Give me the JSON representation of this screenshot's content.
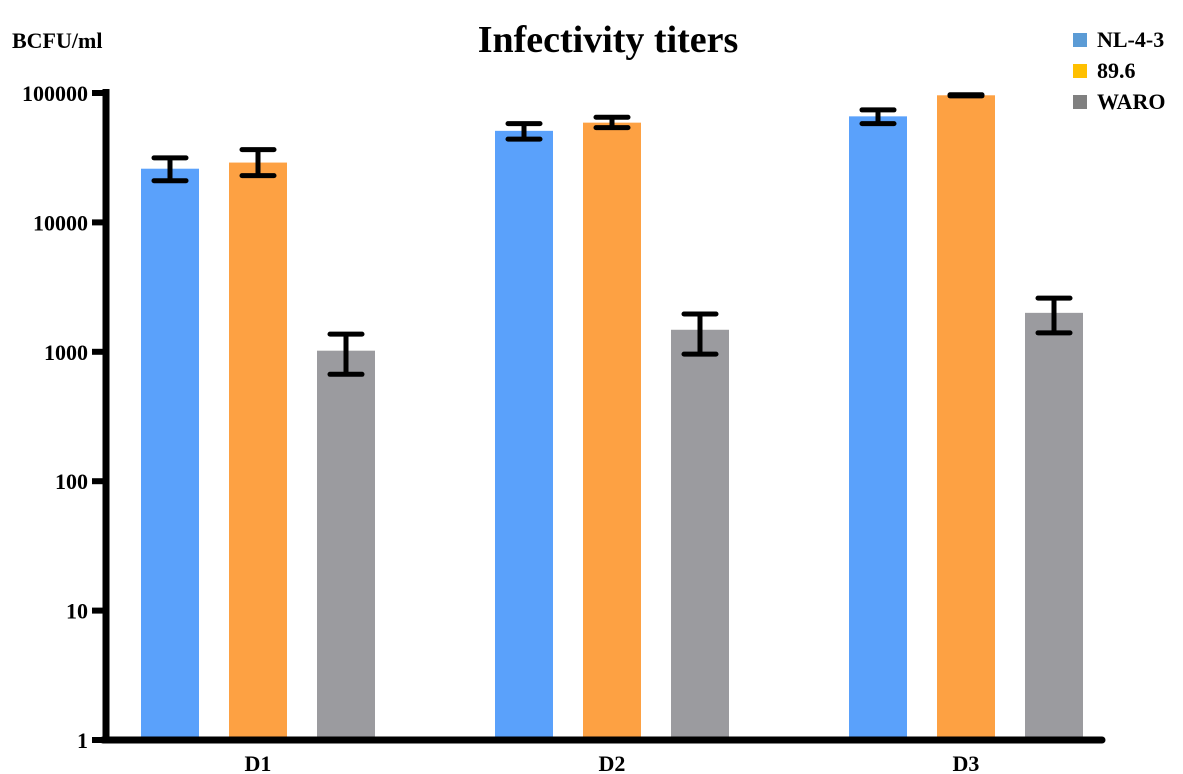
{
  "chart_data": {
    "type": "bar",
    "title": "Infectivity titers",
    "ylabel": "BCFU/ml",
    "xlabel": "",
    "yscale": "log",
    "ylim": [
      1,
      100000
    ],
    "yticks": [
      "1",
      "10",
      "100",
      "1000",
      "10000",
      "100000"
    ],
    "categories": [
      "D1",
      "D2",
      "D3"
    ],
    "legend_position": "top-right",
    "grid": false,
    "series": [
      {
        "name": "NL-4-3",
        "color": "#5aa1fb",
        "legend_color": "#5b9bd5",
        "values": [
          26000,
          51000,
          66000
        ],
        "error_low": [
          21000,
          44000,
          58000
        ],
        "error_high": [
          31500,
          58000,
          74000
        ]
      },
      {
        "name": "89.6",
        "color": "#fda143",
        "legend_color": "#ffc000",
        "values": [
          29000,
          59000,
          96000
        ],
        "error_low": [
          23000,
          54000,
          95000
        ],
        "error_high": [
          36500,
          65000,
          97000
        ]
      },
      {
        "name": "WARO",
        "color": "#9b9b9f",
        "legend_color": "#808080",
        "values": [
          1020,
          1480,
          2000
        ],
        "error_low": [
          670,
          960,
          1400
        ],
        "error_high": [
          1370,
          1960,
          2600
        ]
      }
    ]
  }
}
